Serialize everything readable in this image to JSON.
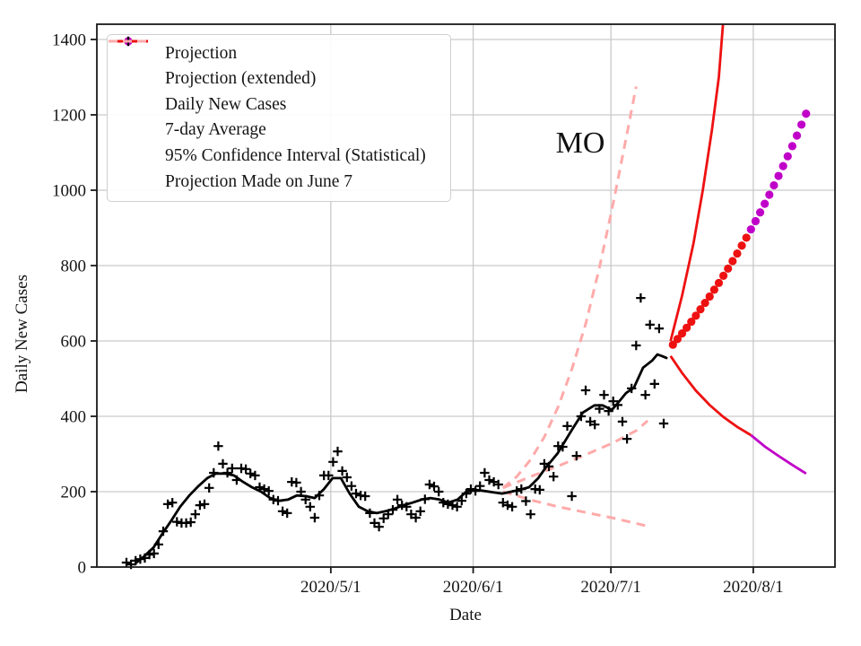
{
  "figure": {
    "annotation": "MO"
  },
  "legend": {
    "items": [
      {
        "label": "Projection",
        "marker": "dot",
        "color": "#ee1111"
      },
      {
        "label": "Projection (extended)",
        "marker": "dot",
        "color": "#c000c8"
      },
      {
        "label": "Daily New Cases",
        "marker": "plus",
        "color": "#000000"
      },
      {
        "label": "7-day Average",
        "marker": "line",
        "color": "#000000"
      },
      {
        "label": "95% Confidence Interval (Statistical)",
        "marker": "line",
        "color": "#ee1111"
      },
      {
        "label": "Projection Made on June 7",
        "marker": "dashed",
        "color": "#ffaaaa"
      }
    ]
  },
  "chart_data": {
    "type": "line",
    "annotation": "MO",
    "xlabel": "Date",
    "ylabel": "Daily New Cases",
    "x_tick_labels": [
      "2020/5/1",
      "2020/6/1",
      "2020/7/1",
      "2020/8/1"
    ],
    "x_tick_days": [
      44.5,
      75.5,
      105.5,
      136.5
    ],
    "y_ticks": [
      0,
      200,
      400,
      600,
      800,
      1000,
      1200,
      1400
    ],
    "ylim": [
      0,
      1440
    ],
    "grid": true,
    "legend_position": "upper left",
    "colors": {
      "projection": "#ee1111",
      "projection_extended": "#c000c8",
      "daily_cases": "#000000",
      "average": "#000000",
      "confidence_interval": "#ee1111",
      "june7_projection": "#ffaaaa",
      "gridline": "#c9c9c9"
    },
    "daily_new_cases": {
      "first_day_index": 0,
      "values": [
        12,
        7,
        17,
        21,
        24,
        33,
        36,
        60,
        95,
        167,
        171,
        120,
        117,
        117,
        119,
        140,
        164,
        167,
        210,
        250,
        321,
        274,
        250,
        262,
        231,
        262,
        260,
        248,
        243,
        212,
        207,
        202,
        179,
        176,
        148,
        143,
        226,
        224,
        200,
        179,
        160,
        131,
        190,
        243,
        243,
        279,
        307,
        255,
        238,
        215,
        195,
        190,
        188,
        143,
        117,
        107,
        129,
        140,
        152,
        179,
        164,
        160,
        140,
        131,
        148,
        180,
        219,
        214,
        200,
        171,
        167,
        164,
        160,
        176,
        195,
        207,
        202,
        215,
        250,
        231,
        226,
        219,
        171,
        164,
        160,
        202,
        207,
        175,
        140,
        207,
        205,
        274,
        267,
        240,
        321,
        319,
        374,
        188,
        295,
        400,
        469,
        386,
        378,
        420,
        457,
        414,
        440,
        430,
        386,
        340,
        474,
        588,
        714,
        457,
        643,
        486,
        633,
        381
      ]
    },
    "seven_day_average": [
      [
        2.0,
        10
      ],
      [
        3.9,
        29
      ],
      [
        5.9,
        52
      ],
      [
        7.8,
        88
      ],
      [
        9.8,
        124
      ],
      [
        11.7,
        160
      ],
      [
        13.7,
        190
      ],
      [
        15.6,
        214
      ],
      [
        17.6,
        236
      ],
      [
        19.5,
        248
      ],
      [
        21.5,
        248
      ],
      [
        23.4,
        243
      ],
      [
        25.4,
        226
      ],
      [
        27.3,
        212
      ],
      [
        29.3,
        200
      ],
      [
        31.3,
        183
      ],
      [
        33.2,
        176
      ],
      [
        35.2,
        179
      ],
      [
        37.1,
        190
      ],
      [
        39.1,
        188
      ],
      [
        41.0,
        183
      ],
      [
        43.0,
        207
      ],
      [
        44.9,
        236
      ],
      [
        46.7,
        236
      ],
      [
        48.6,
        195
      ],
      [
        50.6,
        160
      ],
      [
        52.5,
        148
      ],
      [
        54.5,
        143
      ],
      [
        56.4,
        148
      ],
      [
        58.4,
        155
      ],
      [
        60.3,
        164
      ],
      [
        62.3,
        171
      ],
      [
        64.3,
        179
      ],
      [
        66.2,
        183
      ],
      [
        68.2,
        179
      ],
      [
        70.1,
        171
      ],
      [
        72.1,
        179
      ],
      [
        74.0,
        200
      ],
      [
        76.0,
        205
      ],
      [
        77.9,
        202
      ],
      [
        79.9,
        198
      ],
      [
        81.8,
        195
      ],
      [
        83.8,
        200
      ],
      [
        85.7,
        205
      ],
      [
        87.7,
        212
      ],
      [
        89.6,
        235
      ],
      [
        91.2,
        262
      ],
      [
        93.9,
        302
      ],
      [
        96.9,
        362
      ],
      [
        99.4,
        410
      ],
      [
        101.9,
        429
      ],
      [
        103.7,
        429
      ],
      [
        105.7,
        417
      ],
      [
        107.2,
        438
      ],
      [
        108.8,
        462
      ],
      [
        110.5,
        476
      ],
      [
        112.5,
        529
      ],
      [
        114.5,
        548
      ],
      [
        115.6,
        564
      ],
      [
        116.6,
        560
      ],
      [
        117.6,
        555
      ]
    ],
    "projection": [
      [
        119,
        590
      ],
      [
        120,
        605
      ],
      [
        121,
        620
      ],
      [
        122,
        635
      ],
      [
        123,
        651
      ],
      [
        124,
        667
      ],
      [
        125,
        684
      ],
      [
        126,
        701
      ],
      [
        127,
        718
      ],
      [
        128,
        736
      ],
      [
        129,
        754
      ],
      [
        130,
        773
      ],
      [
        131,
        792
      ],
      [
        132,
        812
      ],
      [
        133,
        832
      ],
      [
        134,
        853
      ],
      [
        135,
        874
      ]
    ],
    "projection_extended": [
      [
        136,
        896
      ],
      [
        137,
        918
      ],
      [
        138,
        941
      ],
      [
        139,
        964
      ],
      [
        140,
        988
      ],
      [
        141,
        1013
      ],
      [
        142,
        1038
      ],
      [
        143,
        1064
      ],
      [
        144,
        1090
      ],
      [
        145,
        1117
      ],
      [
        146,
        1145
      ],
      [
        147,
        1174
      ],
      [
        148,
        1203
      ]
    ],
    "ci_upper": [
      [
        118.5,
        600
      ],
      [
        121,
        720
      ],
      [
        123.5,
        860
      ],
      [
        125.5,
        1000
      ],
      [
        127.5,
        1160
      ],
      [
        129,
        1300
      ],
      [
        129.9,
        1440
      ]
    ],
    "ci_lower": [
      [
        118.5,
        560
      ],
      [
        121,
        515
      ],
      [
        124,
        468
      ],
      [
        127,
        430
      ],
      [
        130,
        398
      ],
      [
        133,
        372
      ],
      [
        136,
        350
      ]
    ],
    "ci_lower_extended": [
      [
        136,
        350
      ],
      [
        139,
        320
      ],
      [
        142,
        295
      ],
      [
        145,
        271
      ],
      [
        148,
        248
      ]
    ],
    "june7_projection_upper": [
      [
        82,
        210
      ],
      [
        85,
        240
      ],
      [
        88,
        285
      ],
      [
        91,
        345
      ],
      [
        94,
        425
      ],
      [
        97,
        525
      ],
      [
        100,
        645
      ],
      [
        103,
        795
      ],
      [
        106,
        965
      ],
      [
        109,
        1150
      ],
      [
        111,
        1275
      ]
    ],
    "june7_projection_mid": [
      [
        82,
        210
      ],
      [
        88,
        240
      ],
      [
        94,
        268
      ],
      [
        100,
        298
      ],
      [
        106,
        330
      ],
      [
        111,
        362
      ],
      [
        113.5,
        388
      ]
    ],
    "june7_projection_lower": [
      [
        82,
        200
      ],
      [
        88,
        178
      ],
      [
        94,
        160
      ],
      [
        100,
        145
      ],
      [
        106,
        130
      ],
      [
        113,
        110
      ]
    ]
  }
}
